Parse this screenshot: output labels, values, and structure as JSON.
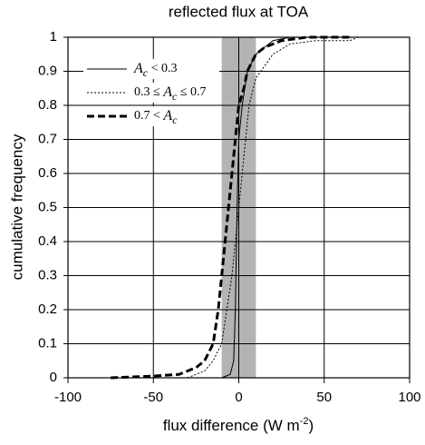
{
  "chart_data": {
    "type": "line",
    "title": "reflected flux at TOA",
    "x_label": "flux difference (W m-2)",
    "y_label": "cumulative frequency",
    "xlim": [
      -100,
      100
    ],
    "ylim": [
      0,
      1
    ],
    "xticks": [
      -100,
      -50,
      0,
      50,
      100
    ],
    "yticks": [
      0,
      0.1,
      0.2,
      0.3,
      0.4,
      0.5,
      0.6,
      0.7,
      0.8,
      0.9,
      1
    ],
    "grid": true,
    "shaded_range": [
      -10,
      10
    ],
    "shade_color": "#b3b3b3",
    "legend": "upper-left",
    "series": [
      {
        "name": "Ac < 0.3",
        "color": "#000000",
        "style": "solid",
        "x": [
          -10,
          -5,
          -3,
          -2,
          -1,
          0,
          2,
          5,
          10,
          20,
          30
        ],
        "values": [
          0,
          0.01,
          0.05,
          0.2,
          0.5,
          0.7,
          0.8,
          0.9,
          0.95,
          0.99,
          1
        ]
      },
      {
        "name": "0.3 ≤ Ac ≤ 0.7",
        "color": "#000000",
        "style": "dotted",
        "x": [
          -30,
          -20,
          -15,
          -10,
          -7,
          -4,
          -2,
          0,
          2,
          4,
          6,
          10,
          20,
          30,
          45,
          65,
          70
        ],
        "values": [
          0,
          0.02,
          0.05,
          0.1,
          0.2,
          0.3,
          0.4,
          0.5,
          0.6,
          0.7,
          0.8,
          0.88,
          0.95,
          0.98,
          0.99,
          0.99,
          1
        ]
      },
      {
        "name": "0.7 < Ac",
        "color": "#000000",
        "style": "dashed",
        "x": [
          -75,
          -50,
          -35,
          -25,
          -20,
          -15,
          -12,
          -10,
          -8,
          -6,
          -4,
          -2,
          0,
          3,
          5,
          10,
          15,
          25,
          40,
          65
        ],
        "values": [
          0,
          0.005,
          0.01,
          0.03,
          0.05,
          0.1,
          0.2,
          0.3,
          0.4,
          0.5,
          0.6,
          0.7,
          0.8,
          0.85,
          0.9,
          0.95,
          0.97,
          0.99,
          1,
          1
        ]
      }
    ]
  }
}
